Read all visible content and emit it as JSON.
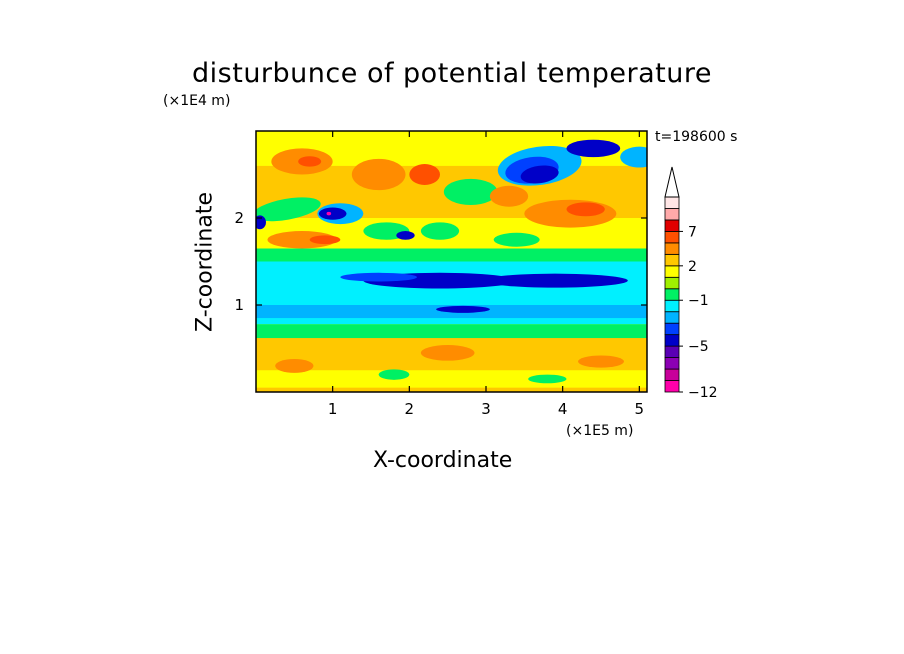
{
  "chart_data": {
    "type": "heatmap",
    "title": "disturbunce of potential temperature",
    "xlabel": "X-coordinate",
    "ylabel": "Z-coordinate",
    "x_unit": "(×1E5 m)",
    "y_unit": "(×1E4 m)",
    "time_label": "t=198600 s",
    "x_ticks": [
      "1",
      "2",
      "3",
      "4",
      "5"
    ],
    "y_ticks": [
      "1",
      "2"
    ],
    "xlim": [
      0,
      5.1
    ],
    "ylim": [
      0,
      3.0
    ],
    "colorbar": {
      "labels": [
        "7",
        "2",
        "−1",
        "−5",
        "−12"
      ],
      "levels": [
        -12,
        -10,
        -8,
        -7,
        -5,
        -4,
        -3,
        -2,
        -1,
        0,
        1,
        2,
        3,
        5,
        7,
        9
      ],
      "colors": [
        "#ff00aa",
        "#c8009a",
        "#8c00b4",
        "#5a00b4",
        "#0000c8",
        "#0040ff",
        "#00b4ff",
        "#00f0ff",
        "#00f064",
        "#a0f000",
        "#ffff00",
        "#ffc800",
        "#ff8c00",
        "#ff5000",
        "#e10000",
        "#ffaaaa",
        "#ffe6e6"
      ],
      "extends_upper": true
    },
    "grid": false,
    "legend": "colorbar right"
  }
}
